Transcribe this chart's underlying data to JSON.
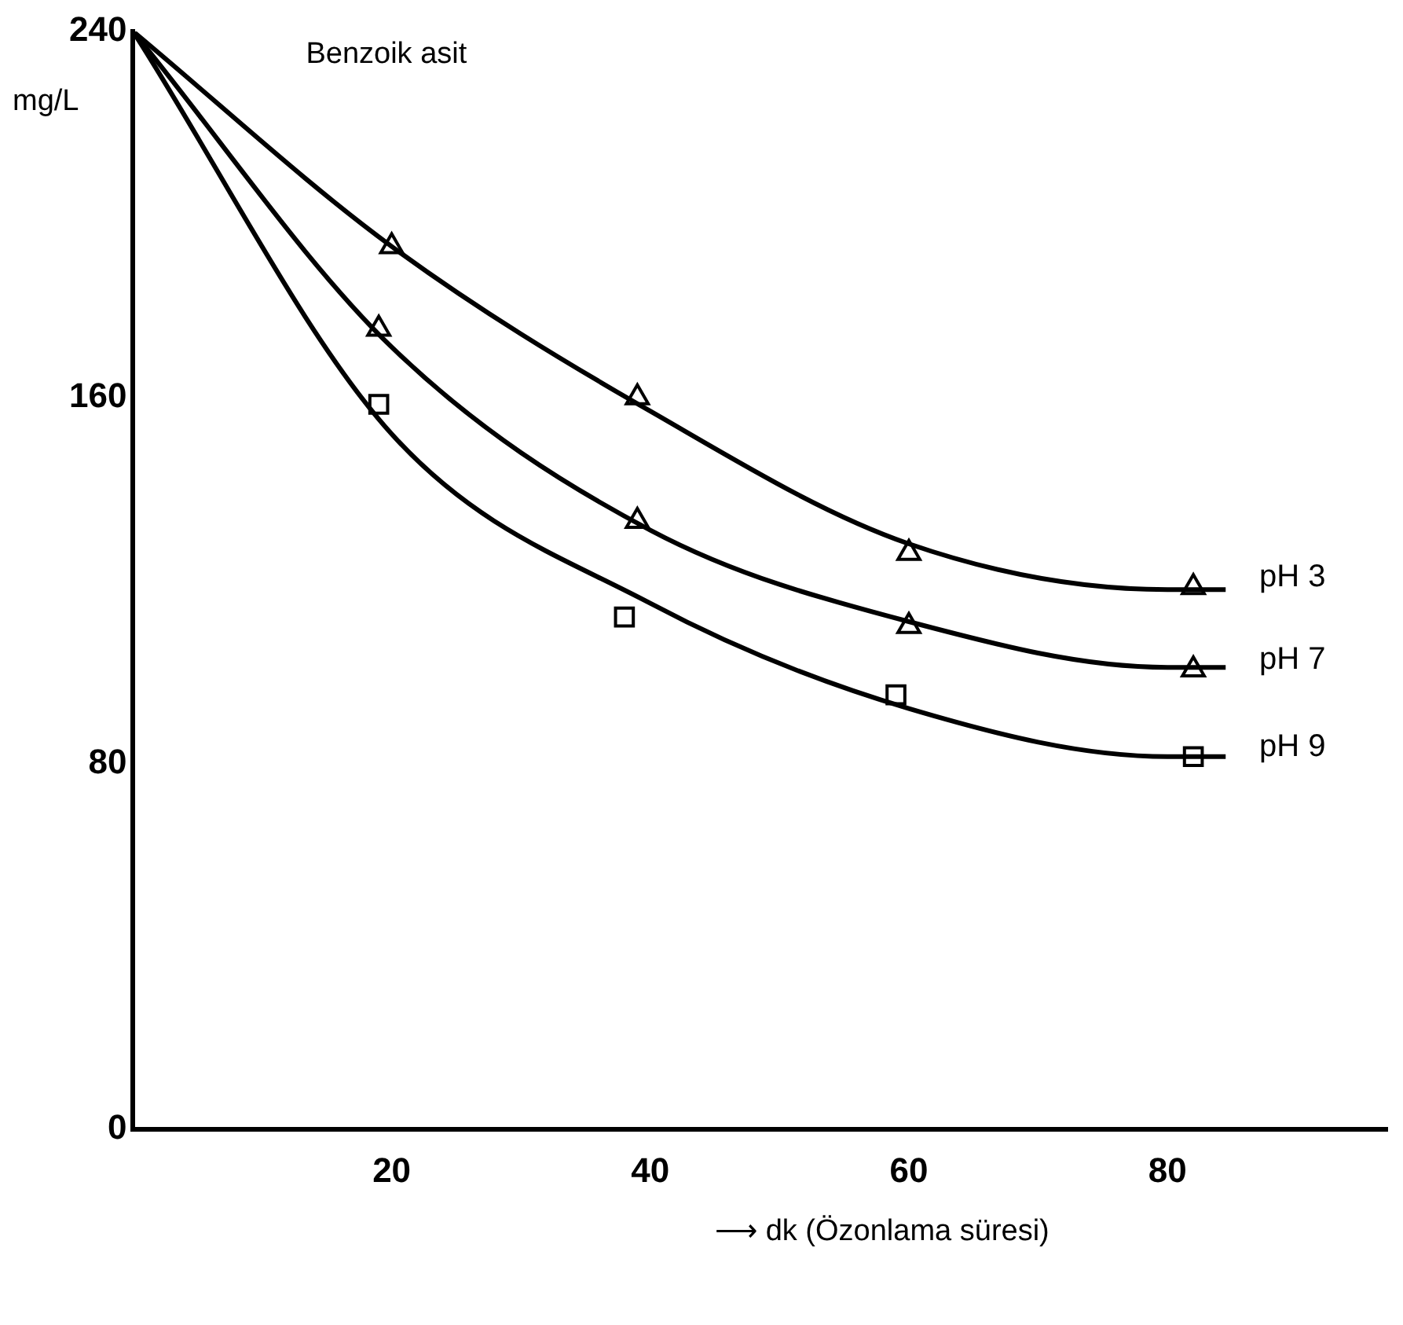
{
  "chart_data": {
    "type": "line",
    "title": "Benzoik asit",
    "ylabel": "mg/L",
    "xlabel": "⟶ dk (Özonlama süresi)",
    "xlim": [
      0,
      97
    ],
    "xticks": [
      {
        "value": 0,
        "label": null
      },
      20,
      40,
      60,
      80
    ],
    "ylim": [
      0,
      240
    ],
    "yticks": [
      0,
      80,
      160,
      240
    ],
    "grid": false,
    "legend": false,
    "series": [
      {
        "type": "line",
        "color": "#000000",
        "marker": "none",
        "x": [
          0,
          20,
          40,
          60,
          80,
          84.5
        ],
        "values": [
          240,
          193,
          157,
          128,
          118,
          118
        ]
      },
      {
        "type": "line",
        "color": "#000000",
        "marker": "none",
        "x": [
          0,
          20,
          40,
          60,
          80,
          84.5
        ],
        "values": [
          240,
          171,
          131,
          111,
          101,
          101
        ]
      },
      {
        "type": "line",
        "color": "#000000",
        "marker": "none",
        "x": [
          0,
          20,
          40,
          60,
          80,
          84.5
        ],
        "values": [
          240,
          152,
          115,
          92,
          81.5,
          81.5
        ]
      },
      {
        "type": "scatter",
        "name": "pH 3",
        "color": "#000000",
        "marker": "triangle",
        "x": [
          20,
          39,
          60,
          82
        ],
        "values": [
          193,
          160,
          126,
          118.5
        ]
      },
      {
        "type": "scatter",
        "name": "pH 7",
        "color": "#000000",
        "marker": "triangle",
        "x": [
          19,
          39,
          60,
          82
        ],
        "values": [
          175,
          133,
          110,
          100.5
        ]
      },
      {
        "type": "scatter",
        "name": "pH 9",
        "color": "#000000",
        "marker": "square",
        "x": [
          19,
          38,
          59,
          82
        ],
        "values": [
          158.5,
          112,
          95,
          81.5
        ]
      }
    ]
  }
}
